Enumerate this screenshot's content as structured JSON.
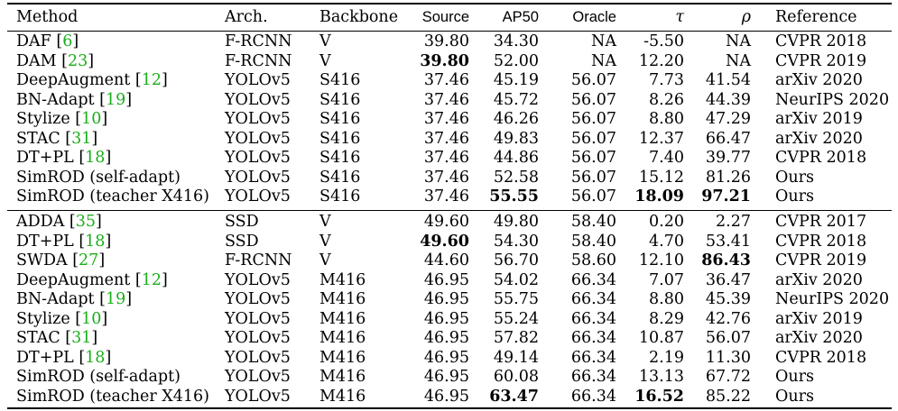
{
  "table": {
    "headers": {
      "method": "Method",
      "arch": "Arch.",
      "backbone": "Backbone",
      "source": "Source",
      "ap50": "AP50",
      "oracle": "Oracle",
      "tau": "τ",
      "rho": "ρ",
      "reference": "Reference"
    },
    "group1": [
      {
        "name": "DAF",
        "cite": "6",
        "arch": "F-RCNN",
        "backbone": "V",
        "source": "39.80",
        "ap50": "34.30",
        "oracle": "NA",
        "tau": "-5.50",
        "rho": "NA",
        "reference": "CVPR 2018"
      },
      {
        "name": "DAM",
        "cite": "23",
        "arch": "F-RCNN",
        "backbone": "V",
        "source": "39.80",
        "ap50": "52.00",
        "oracle": "NA",
        "tau": "12.20",
        "rho": "NA",
        "reference": "CVPR 2019"
      },
      {
        "name": "DeepAugment",
        "cite": "12",
        "arch": "YOLOv5",
        "backbone": "S416",
        "source": "37.46",
        "ap50": "45.19",
        "oracle": "56.07",
        "tau": "7.73",
        "rho": "41.54",
        "reference": "arXiv 2020"
      },
      {
        "name": "BN-Adapt",
        "cite": "19",
        "arch": "YOLOv5",
        "backbone": "S416",
        "source": "37.46",
        "ap50": "45.72",
        "oracle": "56.07",
        "tau": "8.26",
        "rho": "44.39",
        "reference": "NeurIPS 2020"
      },
      {
        "name": "Stylize",
        "cite": "10",
        "arch": "YOLOv5",
        "backbone": "S416",
        "source": "37.46",
        "ap50": "46.26",
        "oracle": "56.07",
        "tau": "8.80",
        "rho": "47.29",
        "reference": "arXiv 2019"
      },
      {
        "name": "STAC",
        "cite": "31",
        "arch": "YOLOv5",
        "backbone": "S416",
        "source": "37.46",
        "ap50": "49.83",
        "oracle": "56.07",
        "tau": "12.37",
        "rho": "66.47",
        "reference": "arXiv 2020"
      },
      {
        "name": "DT+PL",
        "cite": "18",
        "arch": "YOLOv5",
        "backbone": "S416",
        "source": "37.46",
        "ap50": "44.86",
        "oracle": "56.07",
        "tau": "7.40",
        "rho": "39.77",
        "reference": "CVPR 2018"
      },
      {
        "name": "SimROD (self-adapt)",
        "cite": "",
        "arch": "YOLOv5",
        "backbone": "S416",
        "source": "37.46",
        "ap50": "52.58",
        "oracle": "56.07",
        "tau": "15.12",
        "rho": "81.26",
        "reference": "Ours"
      },
      {
        "name": "SimROD (teacher X416)",
        "cite": "",
        "arch": "YOLOv5",
        "backbone": "S416",
        "source": "37.46",
        "ap50": "55.55",
        "oracle": "56.07",
        "tau": "18.09",
        "rho": "97.21",
        "reference": "Ours"
      }
    ],
    "group2": [
      {
        "name": "ADDA",
        "cite": "35",
        "arch": "SSD",
        "backbone": "V",
        "source": "49.60",
        "ap50": "49.80",
        "oracle": "58.40",
        "tau": "0.20",
        "rho": "2.27",
        "reference": "CVPR 2017"
      },
      {
        "name": "DT+PL",
        "cite": "18",
        "arch": "SSD",
        "backbone": "V",
        "source": "49.60",
        "ap50": "54.30",
        "oracle": "58.40",
        "tau": "4.70",
        "rho": "53.41",
        "reference": "CVPR 2018"
      },
      {
        "name": "SWDA",
        "cite": "27",
        "arch": "F-RCNN",
        "backbone": "V",
        "source": "44.60",
        "ap50": "56.70",
        "oracle": "58.60",
        "tau": "12.10",
        "rho": "86.43",
        "reference": "CVPR 2019"
      },
      {
        "name": "DeepAugment",
        "cite": "12",
        "arch": "YOLOv5",
        "backbone": "M416",
        "source": "46.95",
        "ap50": "54.02",
        "oracle": "66.34",
        "tau": "7.07",
        "rho": "36.47",
        "reference": "arXiv 2020"
      },
      {
        "name": "BN-Adapt",
        "cite": "19",
        "arch": "YOLOv5",
        "backbone": "M416",
        "source": "46.95",
        "ap50": "55.75",
        "oracle": "66.34",
        "tau": "8.80",
        "rho": "45.39",
        "reference": "NeurIPS 2020"
      },
      {
        "name": "Stylize",
        "cite": "10",
        "arch": "YOLOv5",
        "backbone": "M416",
        "source": "46.95",
        "ap50": "55.24",
        "oracle": "66.34",
        "tau": "8.29",
        "rho": "42.76",
        "reference": "arXiv 2019"
      },
      {
        "name": "STAC",
        "cite": "31",
        "arch": "YOLOv5",
        "backbone": "M416",
        "source": "46.95",
        "ap50": "57.82",
        "oracle": "66.34",
        "tau": "10.87",
        "rho": "56.07",
        "reference": "arXiv 2020"
      },
      {
        "name": "DT+PL",
        "cite": "18",
        "arch": "YOLOv5",
        "backbone": "M416",
        "source": "46.95",
        "ap50": "49.14",
        "oracle": "66.34",
        "tau": "2.19",
        "rho": "11.30",
        "reference": "CVPR 2018"
      },
      {
        "name": "SimROD (self-adapt)",
        "cite": "",
        "arch": "YOLOv5",
        "backbone": "M416",
        "source": "46.95",
        "ap50": "60.08",
        "oracle": "66.34",
        "tau": "13.13",
        "rho": "67.72",
        "reference": "Ours"
      },
      {
        "name": "SimROD (teacher X416)",
        "cite": "",
        "arch": "YOLOv5",
        "backbone": "M416",
        "source": "46.95",
        "ap50": "63.47",
        "oracle": "66.34",
        "tau": "16.52",
        "rho": "85.22",
        "reference": "Ours"
      }
    ],
    "bold_cells": [
      {
        "group": "group1",
        "row": 1,
        "col": "source"
      },
      {
        "group": "group1",
        "row": 8,
        "col": "ap50"
      },
      {
        "group": "group1",
        "row": 8,
        "col": "tau"
      },
      {
        "group": "group1",
        "row": 8,
        "col": "rho"
      },
      {
        "group": "group2",
        "row": 1,
        "col": "source"
      },
      {
        "group": "group2",
        "row": 2,
        "col": "rho"
      },
      {
        "group": "group2",
        "row": 9,
        "col": "ap50"
      },
      {
        "group": "group2",
        "row": 9,
        "col": "tau"
      }
    ],
    "cite_color": "#1aae1a"
  }
}
